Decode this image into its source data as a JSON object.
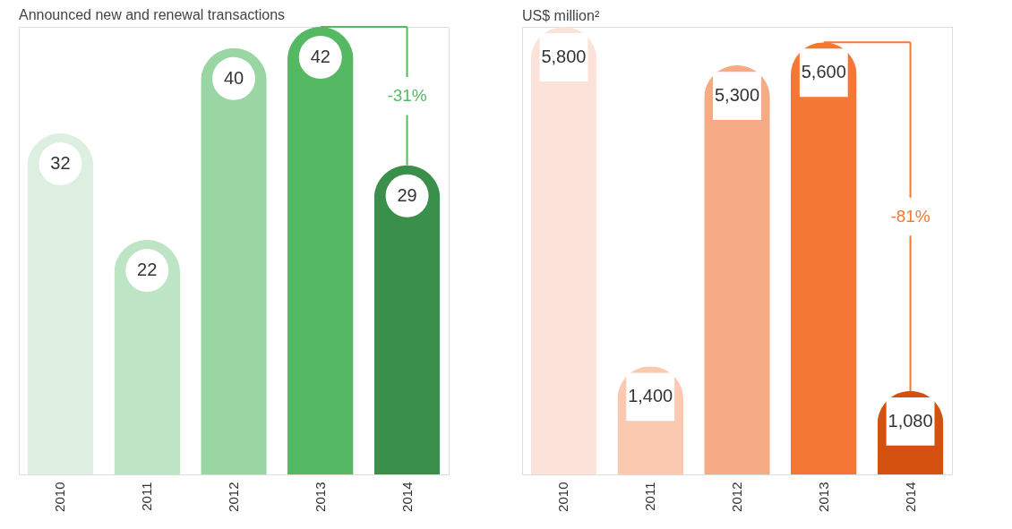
{
  "chart_data": [
    {
      "type": "bar",
      "title": "Announced new and renewal transactions",
      "categories": [
        "2010",
        "2011",
        "2012",
        "2013",
        "2014"
      ],
      "values": [
        32,
        22,
        40,
        42,
        29
      ],
      "colors": [
        "#dcefe0",
        "#bde5c5",
        "#9ad6a3",
        "#55b964",
        "#3a8f4b"
      ],
      "data_labels": true,
      "annotations": [
        "-31%"
      ]
    },
    {
      "type": "bar",
      "title": "US$ million²",
      "categories": [
        "2010",
        "2011",
        "2012",
        "2013",
        "2014"
      ],
      "values": [
        5800,
        1400,
        5300,
        5600,
        1080
      ],
      "colors": [
        "#fce3d9",
        "#fbc8b0",
        "#f6aa86",
        "#f47735",
        "#d4510f"
      ],
      "value_labels": [
        "5,800",
        "1,400",
        "5,300",
        "5,600",
        "1,080"
      ],
      "annotations": [
        "-81%"
      ]
    }
  ]
}
